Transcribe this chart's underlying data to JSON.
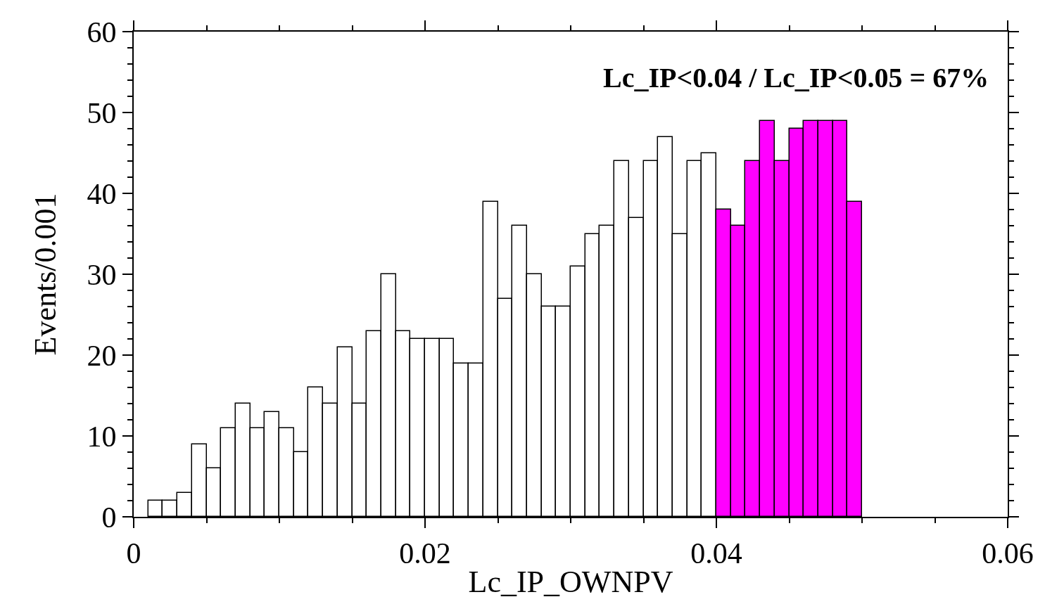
{
  "chart_data": {
    "type": "histogram",
    "xlabel": "Lc_IP_OWNPV",
    "ylabel": "Events/0.001",
    "annotations": [
      "Lc_IP<0.04 / Lc_IP<0.05 = 67%"
    ],
    "bins": [
      0.001,
      0.002,
      0.003,
      0.004,
      0.005,
      0.006,
      0.007,
      0.008,
      0.009,
      0.01,
      0.011,
      0.012,
      0.013,
      0.014,
      0.015,
      0.016,
      0.017,
      0.018,
      0.019,
      0.02,
      0.021,
      0.022,
      0.023,
      0.024,
      0.025,
      0.026,
      0.027,
      0.028,
      0.029,
      0.03,
      0.031,
      0.032,
      0.033,
      0.034,
      0.035,
      0.036,
      0.037,
      0.038,
      0.039,
      0.04,
      0.041,
      0.042,
      0.043,
      0.044,
      0.045,
      0.046,
      0.047,
      0.048,
      0.049,
      0.05
    ],
    "values": [
      2,
      2,
      3,
      9,
      6,
      11,
      14,
      11,
      13,
      11,
      8,
      16,
      14,
      21,
      14,
      23,
      30,
      23,
      22,
      22,
      22,
      19,
      19,
      39,
      27,
      36,
      30,
      26,
      26,
      31,
      35,
      36,
      44,
      37,
      44,
      47,
      35,
      44,
      45,
      38,
      36,
      44,
      49,
      44,
      48,
      49,
      49,
      49,
      39
    ],
    "colors": [
      "#ffffff",
      "#ffffff",
      "#ffffff",
      "#ffffff",
      "#ffffff",
      "#ffffff",
      "#ffffff",
      "#ffffff",
      "#ffffff",
      "#ffffff",
      "#ffffff",
      "#ffffff",
      "#ffffff",
      "#ffffff",
      "#ffffff",
      "#ffffff",
      "#ffffff",
      "#ffffff",
      "#ffffff",
      "#ffffff",
      "#ffffff",
      "#ffffff",
      "#ffffff",
      "#ffffff",
      "#ffffff",
      "#ffffff",
      "#ffffff",
      "#ffffff",
      "#ffffff",
      "#ffffff",
      "#ffffff",
      "#ffffff",
      "#ffffff",
      "#ffffff",
      "#ffffff",
      "#ffffff",
      "#ffffff",
      "#ffffff",
      "#ffffff",
      "#ff00ff",
      "#ff00ff",
      "#ff00ff",
      "#ff00ff",
      "#ff00ff",
      "#ff00ff",
      "#ff00ff",
      "#ff00ff",
      "#ff00ff",
      "#ff00ff"
    ],
    "xlim": [
      0,
      0.06
    ],
    "xticks": [
      {
        "value": 0,
        "label": "0"
      },
      {
        "value": 0.005,
        "label": null
      },
      {
        "value": 0.01,
        "label": null
      },
      {
        "value": 0.015,
        "label": null
      },
      {
        "value": 0.02,
        "label": "0.02"
      },
      {
        "value": 0.025,
        "label": null
      },
      {
        "value": 0.03,
        "label": null
      },
      {
        "value": 0.035,
        "label": null
      },
      {
        "value": 0.04,
        "label": "0.04"
      },
      {
        "value": 0.045,
        "label": null
      },
      {
        "value": 0.05,
        "label": null
      },
      {
        "value": 0.055,
        "label": null
      },
      {
        "value": 0.06,
        "label": "0.06"
      }
    ],
    "ylim": [
      0,
      60
    ],
    "yticks": [
      0,
      {
        "value": 2,
        "label": null
      },
      {
        "value": 4,
        "label": null
      },
      {
        "value": 6,
        "label": null
      },
      {
        "value": 8,
        "label": null
      },
      10,
      {
        "value": 12,
        "label": null
      },
      {
        "value": 14,
        "label": null
      },
      {
        "value": 16,
        "label": null
      },
      {
        "value": 18,
        "label": null
      },
      20,
      {
        "value": 22,
        "label": null
      },
      {
        "value": 24,
        "label": null
      },
      {
        "value": 26,
        "label": null
      },
      {
        "value": 28,
        "label": null
      },
      30,
      {
        "value": 32,
        "label": null
      },
      {
        "value": 34,
        "label": null
      },
      {
        "value": 36,
        "label": null
      },
      {
        "value": 38,
        "label": null
      },
      40,
      {
        "value": 42,
        "label": null
      },
      {
        "value": 44,
        "label": null
      },
      {
        "value": 46,
        "label": null
      },
      {
        "value": 48,
        "label": null
      },
      50,
      {
        "value": 52,
        "label": null
      },
      {
        "value": 54,
        "label": null
      },
      {
        "value": 56,
        "label": null
      },
      {
        "value": 58,
        "label": null
      },
      60
    ]
  }
}
